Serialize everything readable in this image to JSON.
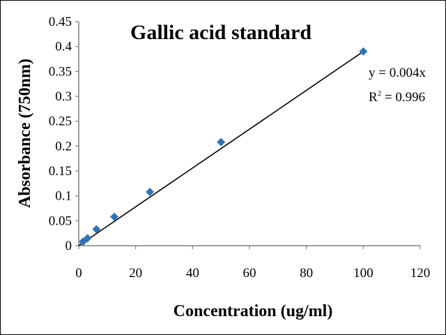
{
  "chart_data": {
    "type": "scatter",
    "title": "Gallic acid standard",
    "xlabel": "Concentration (ug/ml)",
    "ylabel": "Absorbance (750nm)",
    "xlim": [
      0,
      120
    ],
    "ylim": [
      0,
      0.45
    ],
    "x_ticks": [
      "0",
      "20",
      "40",
      "60",
      "80",
      "100",
      "120"
    ],
    "y_ticks": [
      "0",
      "0.05",
      "0.1",
      "0.15",
      "0.2",
      "0.25",
      "0.3",
      "0.35",
      "0.4",
      "0.45"
    ],
    "grid": false,
    "legend": "none",
    "series": [
      {
        "x": [
          1.5,
          3.1,
          6.2,
          12.5,
          25,
          50,
          100
        ],
        "y": [
          0.008,
          0.015,
          0.033,
          0.058,
          0.108,
          0.208,
          0.39
        ],
        "color": "#2e75b6",
        "marker": "diamond"
      }
    ],
    "trendline": {
      "slope": 0.0039,
      "x_range": [
        0,
        100
      ],
      "color": "#000000"
    },
    "annotations": {
      "equation": "y = 0.004x",
      "r2_label": "R",
      "r2_exp": "2",
      "r2_value": " = 0.996"
    }
  }
}
